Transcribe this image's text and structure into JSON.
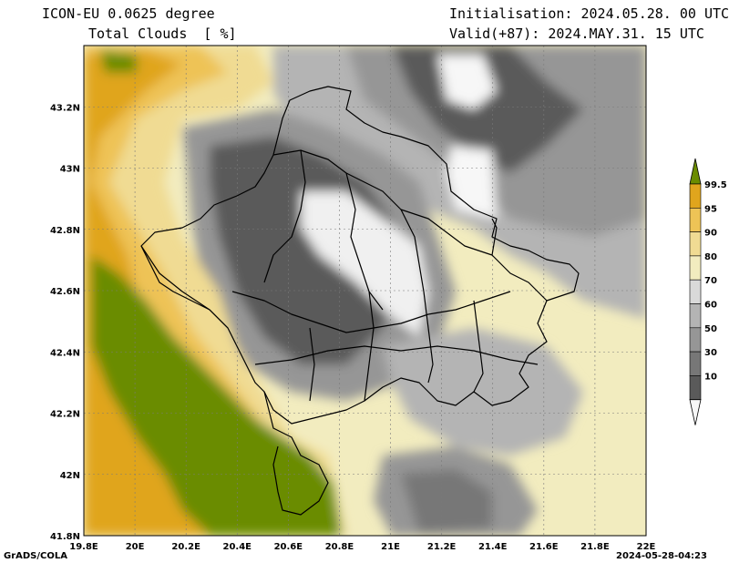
{
  "header": {
    "model": "ICON-EU 0.0625 degree",
    "variable": "Total Clouds  [ %]",
    "init": "Initialisation: 2024.05.28. 00 UTC",
    "valid": "Valid(+87): 2024.MAY.31. 15 UTC"
  },
  "footer": {
    "credit": "GrADS/COLA",
    "timestamp": "2024-05-28-04:23"
  },
  "map": {
    "lon_labels": [
      "19.8E",
      "20E",
      "20.2E",
      "20.4E",
      "20.6E",
      "20.8E",
      "21E",
      "21.2E",
      "21.4E",
      "21.6E",
      "21.8E",
      "22E"
    ],
    "lat_labels": [
      "41.8N",
      "42N",
      "42.2N",
      "42.4N",
      "42.6N",
      "42.8N",
      "43N",
      "43.2N"
    ],
    "lon_range": [
      19.8,
      22.0
    ],
    "lat_range": [
      41.8,
      43.4
    ]
  },
  "colorbar": {
    "labels": [
      "99.5",
      "95",
      "90",
      "80",
      "70",
      "60",
      "50",
      "30",
      "10"
    ],
    "colors": [
      "#6b8c00",
      "#e0a51d",
      "#eec356",
      "#f0db93",
      "#f2ecbf",
      "#d9d9d9",
      "#b4b4b4",
      "#969696",
      "#777777",
      "#5a5a5a",
      "#f7f7f7"
    ]
  }
}
